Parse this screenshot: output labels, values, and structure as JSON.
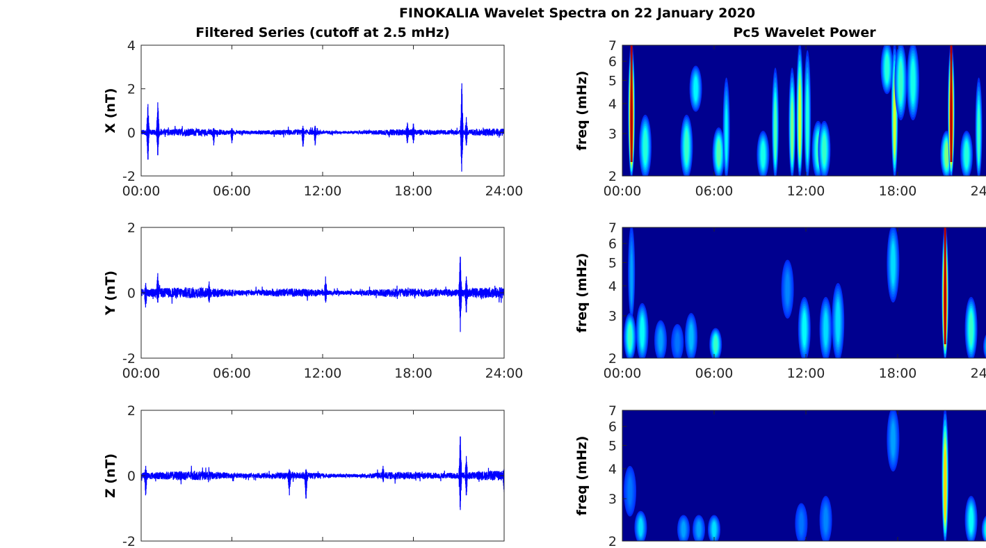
{
  "chart_data": {
    "title": "FINOKALIA Wavelet Spectra on 22 January 2020",
    "left_column_title": "Filtered Series (cutoff at 2.5 mHz)",
    "right_column_title": "Pc5 Wavelet Power",
    "xticks_hours": [
      0,
      6,
      12,
      18,
      24
    ],
    "xtick_labels": [
      "00:00",
      "06:00",
      "12:00",
      "18:00",
      "24:00"
    ],
    "xlim_hours": [
      0,
      24
    ],
    "line_color": "#0000ff",
    "background_power_color": "#00008f",
    "colormap": "jet",
    "spectrogram_ylabel": "freq (mHz)",
    "spectrogram_yscale": "log",
    "spectrogram_ylim": [
      2,
      7
    ],
    "spectrogram_yticks": [
      2,
      3,
      4,
      5,
      6,
      7
    ],
    "panels": [
      {
        "type": "line",
        "component": "X",
        "ylabel": "X (nT)",
        "ylim": [
          -2,
          4
        ],
        "yticks": [
          -2,
          0,
          2,
          4
        ],
        "show_xtick_labels": true,
        "noise_amplitude": 0.12,
        "events": [
          {
            "t": 0.45,
            "max": 1.3,
            "min": -1.25
          },
          {
            "t": 1.1,
            "max": 1.38,
            "min": -1.05
          },
          {
            "t": 4.8,
            "max": 0.2,
            "min": -0.6
          },
          {
            "t": 6.0,
            "max": 0.2,
            "min": -0.5
          },
          {
            "t": 10.7,
            "max": 0.3,
            "min": -0.65
          },
          {
            "t": 11.5,
            "max": 0.3,
            "min": -0.6
          },
          {
            "t": 17.6,
            "max": 0.45,
            "min": -0.5
          },
          {
            "t": 18.0,
            "max": 0.4,
            "min": -0.5
          },
          {
            "t": 21.2,
            "max": 2.25,
            "min": -1.8
          },
          {
            "t": 21.5,
            "max": 0.7,
            "min": -0.6
          }
        ]
      },
      {
        "type": "line",
        "component": "Y",
        "ylabel": "Y (nT)",
        "ylim": [
          -2,
          2
        ],
        "yticks": [
          -2,
          0,
          2
        ],
        "show_xtick_labels": true,
        "noise_amplitude": 0.12,
        "events": [
          {
            "t": 0.3,
            "max": 0.3,
            "min": -0.45
          },
          {
            "t": 1.1,
            "max": 0.6,
            "min": -0.3
          },
          {
            "t": 4.5,
            "max": 0.35,
            "min": -0.3
          },
          {
            "t": 12.2,
            "max": 0.5,
            "min": -0.3
          },
          {
            "t": 21.1,
            "max": 1.1,
            "min": -1.2
          },
          {
            "t": 21.5,
            "max": 0.5,
            "min": -0.6
          }
        ]
      },
      {
        "type": "line",
        "component": "Z",
        "ylabel": "Z (nT)",
        "ylim": [
          -2,
          2
        ],
        "yticks": [
          -2,
          0,
          2
        ],
        "show_xtick_labels": false,
        "noise_amplitude": 0.1,
        "events": [
          {
            "t": 0.3,
            "max": 0.3,
            "min": -0.6
          },
          {
            "t": 9.8,
            "max": 0.2,
            "min": -0.6
          },
          {
            "t": 10.9,
            "max": 0.2,
            "min": -0.7
          },
          {
            "t": 16.0,
            "max": 0.3,
            "min": -0.2
          },
          {
            "t": 21.1,
            "max": 1.2,
            "min": -1.05
          },
          {
            "t": 21.5,
            "max": 0.6,
            "min": -0.6
          },
          {
            "t": 24.0,
            "max": 0.2,
            "min": -0.5
          }
        ]
      },
      {
        "type": "heatmap",
        "component": "X",
        "show_xtick_labels": true,
        "blobs": [
          {
            "t": 0.6,
            "f": [
              2,
              7
            ],
            "power": 1.0
          },
          {
            "t": 1.5,
            "f": [
              2,
              3.5
            ],
            "power": 0.4
          },
          {
            "t": 4.2,
            "f": [
              2,
              3.5
            ],
            "power": 0.42
          },
          {
            "t": 4.8,
            "f": [
              3.8,
              5.6
            ],
            "power": 0.35
          },
          {
            "t": 6.3,
            "f": [
              2,
              3.1
            ],
            "power": 0.45
          },
          {
            "t": 6.8,
            "f": [
              2,
              5.0
            ],
            "power": 0.35
          },
          {
            "t": 9.2,
            "f": [
              2,
              3.0
            ],
            "power": 0.38
          },
          {
            "t": 10.0,
            "f": [
              2,
              5.5
            ],
            "power": 0.45
          },
          {
            "t": 11.1,
            "f": [
              2,
              5.5
            ],
            "power": 0.5
          },
          {
            "t": 11.6,
            "f": [
              2,
              7
            ],
            "power": 0.6
          },
          {
            "t": 12.1,
            "f": [
              2,
              6.5
            ],
            "power": 0.4
          },
          {
            "t": 12.8,
            "f": [
              2,
              3.3
            ],
            "power": 0.42
          },
          {
            "t": 13.2,
            "f": [
              2,
              3.3
            ],
            "power": 0.42
          },
          {
            "t": 17.3,
            "f": [
              4.5,
              7
            ],
            "power": 0.4
          },
          {
            "t": 17.8,
            "f": [
              2,
              7
            ],
            "power": 0.6
          },
          {
            "t": 18.2,
            "f": [
              3.5,
              7
            ],
            "power": 0.42
          },
          {
            "t": 19.0,
            "f": [
              3.5,
              7
            ],
            "power": 0.38
          },
          {
            "t": 21.2,
            "f": [
              2,
              3.0
            ],
            "power": 0.5
          },
          {
            "t": 21.5,
            "f": [
              2,
              7
            ],
            "power": 1.0
          },
          {
            "t": 22.5,
            "f": [
              2,
              3.0
            ],
            "power": 0.4
          },
          {
            "t": 23.3,
            "f": [
              2,
              5.0
            ],
            "power": 0.42
          }
        ]
      },
      {
        "type": "heatmap",
        "component": "Y",
        "show_xtick_labels": true,
        "blobs": [
          {
            "t": 0.6,
            "f": [
              3,
              7
            ],
            "power": 0.25
          },
          {
            "t": 0.5,
            "f": [
              2,
              3.0
            ],
            "power": 0.42
          },
          {
            "t": 1.3,
            "f": [
              2,
              3.3
            ],
            "power": 0.36
          },
          {
            "t": 2.5,
            "f": [
              2,
              2.8
            ],
            "power": 0.25
          },
          {
            "t": 3.6,
            "f": [
              2,
              2.7
            ],
            "power": 0.2
          },
          {
            "t": 4.5,
            "f": [
              2,
              3.0
            ],
            "power": 0.28
          },
          {
            "t": 6.1,
            "f": [
              2,
              2.6
            ],
            "power": 0.42
          },
          {
            "t": 10.8,
            "f": [
              3,
              5.0
            ],
            "power": 0.22
          },
          {
            "t": 11.9,
            "f": [
              2,
              3.5
            ],
            "power": 0.36
          },
          {
            "t": 13.3,
            "f": [
              2,
              3.5
            ],
            "power": 0.32
          },
          {
            "t": 14.1,
            "f": [
              2,
              4.0
            ],
            "power": 0.32
          },
          {
            "t": 17.7,
            "f": [
              3.5,
              7
            ],
            "power": 0.32
          },
          {
            "t": 21.1,
            "f": [
              2,
              7
            ],
            "power": 1.0
          },
          {
            "t": 22.8,
            "f": [
              2,
              3.5
            ],
            "power": 0.42
          },
          {
            "t": 24.0,
            "f": [
              2,
              2.5
            ],
            "power": 0.42
          }
        ]
      },
      {
        "type": "heatmap",
        "component": "Z",
        "show_xtick_labels": false,
        "blobs": [
          {
            "t": 0.5,
            "f": [
              2.6,
              4.0
            ],
            "power": 0.2
          },
          {
            "t": 1.2,
            "f": [
              2,
              2.6
            ],
            "power": 0.32
          },
          {
            "t": 4.0,
            "f": [
              2,
              2.5
            ],
            "power": 0.25
          },
          {
            "t": 5.0,
            "f": [
              2,
              2.5
            ],
            "power": 0.25
          },
          {
            "t": 6.0,
            "f": [
              2,
              2.5
            ],
            "power": 0.32
          },
          {
            "t": 11.7,
            "f": [
              2,
              2.8
            ],
            "power": 0.2
          },
          {
            "t": 13.3,
            "f": [
              2,
              3.0
            ],
            "power": 0.22
          },
          {
            "t": 17.7,
            "f": [
              4.0,
              7
            ],
            "power": 0.25
          },
          {
            "t": 21.1,
            "f": [
              2,
              7
            ],
            "power": 0.7
          },
          {
            "t": 22.8,
            "f": [
              2,
              3.0
            ],
            "power": 0.36
          },
          {
            "t": 23.9,
            "f": [
              2,
              2.5
            ],
            "power": 0.45
          }
        ]
      }
    ]
  }
}
